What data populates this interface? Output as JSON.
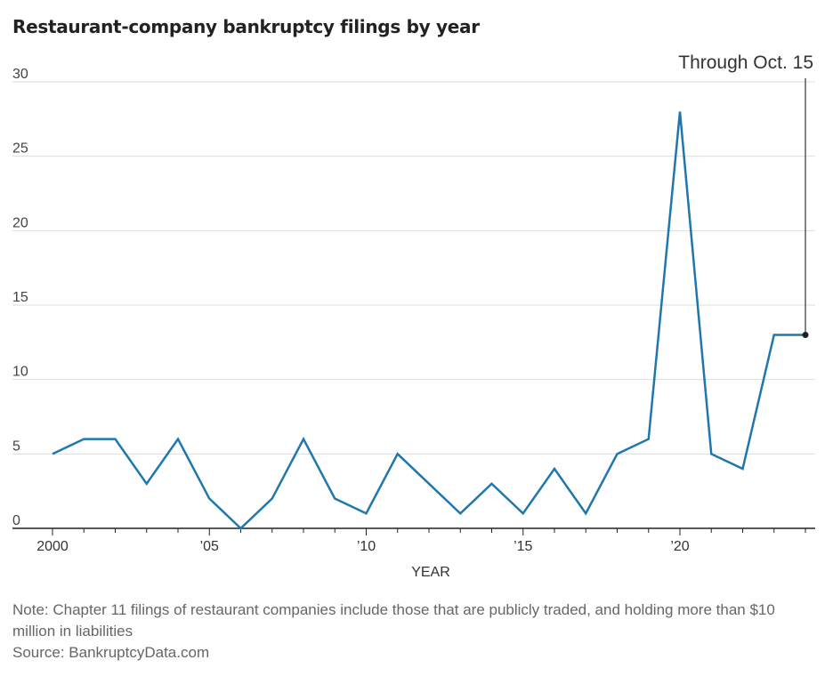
{
  "chart_data": {
    "type": "line",
    "title": "Restaurant-company bankruptcy filings by year",
    "xlabel": "YEAR",
    "ylabel": "",
    "x": [
      2000,
      2001,
      2002,
      2003,
      2004,
      2005,
      2006,
      2007,
      2008,
      2009,
      2010,
      2011,
      2012,
      2013,
      2014,
      2015,
      2016,
      2017,
      2018,
      2019,
      2020,
      2021,
      2022,
      2023,
      2024
    ],
    "values": [
      5,
      6,
      6,
      3,
      6,
      2,
      0,
      2,
      6,
      2,
      1,
      5,
      3,
      1,
      3,
      1,
      4,
      1,
      5,
      6,
      28,
      5,
      4,
      13,
      13
    ],
    "xlim": [
      2000,
      2024
    ],
    "ylim": [
      0,
      30
    ],
    "x_ticks": [
      2000,
      2005,
      2010,
      2015,
      2020
    ],
    "x_tick_labels": [
      "2000",
      "’05",
      "’10",
      "’15",
      "’20"
    ],
    "y_ticks": [
      0,
      5,
      10,
      15,
      20,
      25,
      30
    ],
    "y_tick_labels": [
      "0",
      "5",
      "10",
      "15",
      "20",
      "25",
      "30"
    ],
    "grid": true,
    "annotation": "Through Oct. 15",
    "line_color": "#1f77ad"
  },
  "note": "Note: Chapter 11 filings of restaurant companies include those that are publicly traded, and holding more than $10 million in liabilities",
  "source": "Source: BankruptcyData.com"
}
